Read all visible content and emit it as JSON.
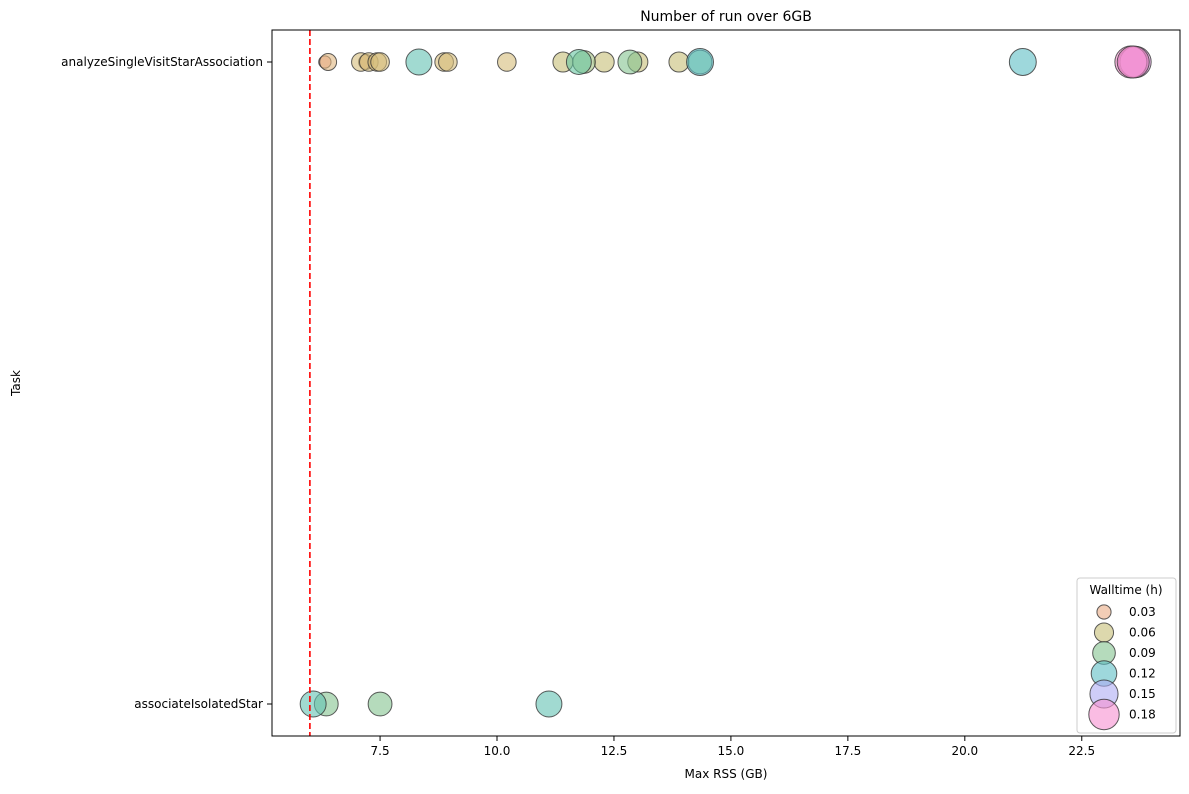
{
  "chart_data": {
    "type": "scatter",
    "title": "Number of run over 6GB",
    "xlabel": "Max RSS (GB)",
    "ylabel": "Task",
    "xlim": [
      5.19,
      24.6
    ],
    "xticks": [
      7.5,
      10.0,
      12.5,
      15.0,
      17.5,
      20.0,
      22.5
    ],
    "xtick_labels": [
      "7.5",
      "10.0",
      "12.5",
      "15.0",
      "17.5",
      "20.0",
      "22.5"
    ],
    "categories": [
      "analyzeSingleVisitStarAssociation",
      "associateIsolatedStar"
    ],
    "threshold_line": {
      "x": 6,
      "color": "#ff0000",
      "style": "dashed"
    },
    "grid": false,
    "legend": {
      "title": "Walltime (h)",
      "placement": "bottom-right",
      "entries": [
        "0.03",
        "0.06",
        "0.09",
        "0.12",
        "0.15",
        "0.18"
      ],
      "values": [
        0.03,
        0.06,
        0.09,
        0.12,
        0.15,
        0.18
      ]
    },
    "palette": [
      "#f2a08c",
      "#d9bd7a",
      "#b5bf74",
      "#66c5a0",
      "#5bbcd0",
      "#b9a8f8",
      "#f78fd0"
    ],
    "points": [
      {
        "task": "analyzeSingleVisitStarAssociation",
        "x": 6.39,
        "walltime": 0.04
      },
      {
        "task": "analyzeSingleVisitStarAssociation",
        "x": 6.32,
        "walltime": 0.02
      },
      {
        "task": "analyzeSingleVisitStarAssociation",
        "x": 7.09,
        "walltime": 0.05
      },
      {
        "task": "analyzeSingleVisitStarAssociation",
        "x": 7.26,
        "walltime": 0.05
      },
      {
        "task": "analyzeSingleVisitStarAssociation",
        "x": 7.2,
        "walltime": 0.03
      },
      {
        "task": "analyzeSingleVisitStarAssociation",
        "x": 7.44,
        "walltime": 0.05
      },
      {
        "task": "analyzeSingleVisitStarAssociation",
        "x": 7.5,
        "walltime": 0.05
      },
      {
        "task": "analyzeSingleVisitStarAssociation",
        "x": 8.33,
        "walltime": 0.11
      },
      {
        "task": "analyzeSingleVisitStarAssociation",
        "x": 8.87,
        "walltime": 0.05
      },
      {
        "task": "analyzeSingleVisitStarAssociation",
        "x": 8.95,
        "walltime": 0.05
      },
      {
        "task": "analyzeSingleVisitStarAssociation",
        "x": 10.21,
        "walltime": 0.05
      },
      {
        "task": "analyzeSingleVisitStarAssociation",
        "x": 11.41,
        "walltime": 0.06
      },
      {
        "task": "analyzeSingleVisitStarAssociation",
        "x": 11.75,
        "walltime": 0.1
      },
      {
        "task": "analyzeSingleVisitStarAssociation",
        "x": 11.86,
        "walltime": 0.08
      },
      {
        "task": "analyzeSingleVisitStarAssociation",
        "x": 12.29,
        "walltime": 0.06
      },
      {
        "task": "analyzeSingleVisitStarAssociation",
        "x": 12.84,
        "walltime": 0.09
      },
      {
        "task": "analyzeSingleVisitStarAssociation",
        "x": 13.01,
        "walltime": 0.06
      },
      {
        "task": "analyzeSingleVisitStarAssociation",
        "x": 13.89,
        "walltime": 0.06
      },
      {
        "task": "analyzeSingleVisitStarAssociation",
        "x": 14.34,
        "walltime": 0.12
      },
      {
        "task": "analyzeSingleVisitStarAssociation",
        "x": 14.34,
        "walltime": 0.09
      },
      {
        "task": "analyzeSingleVisitStarAssociation",
        "x": 21.24,
        "walltime": 0.12
      },
      {
        "task": "analyzeSingleVisitStarAssociation",
        "x": 23.6,
        "walltime": 0.15
      },
      {
        "task": "analyzeSingleVisitStarAssociation",
        "x": 23.65,
        "walltime": 0.17
      },
      {
        "task": "analyzeSingleVisitStarAssociation",
        "x": 23.55,
        "walltime": 0.18
      },
      {
        "task": "analyzeSingleVisitStarAssociation",
        "x": 23.6,
        "walltime": 0.18
      },
      {
        "task": "associateIsolatedStar",
        "x": 6.07,
        "walltime": 0.11
      },
      {
        "task": "associateIsolatedStar",
        "x": 6.35,
        "walltime": 0.09
      },
      {
        "task": "associateIsolatedStar",
        "x": 7.5,
        "walltime": 0.09
      },
      {
        "task": "associateIsolatedStar",
        "x": 11.11,
        "walltime": 0.11
      }
    ]
  }
}
